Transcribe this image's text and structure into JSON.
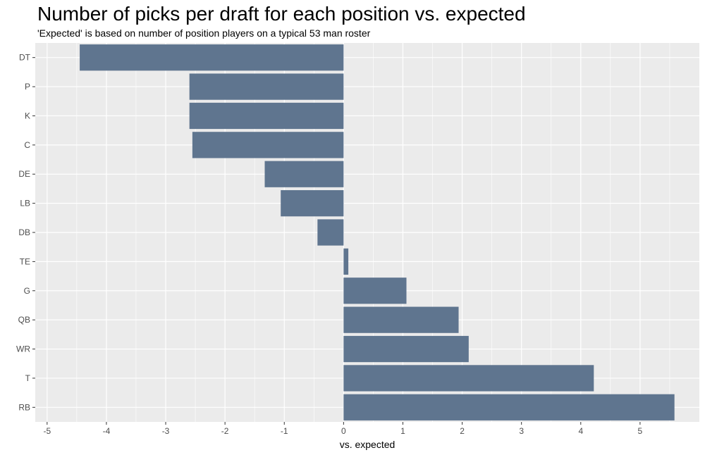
{
  "chart_data": {
    "type": "bar",
    "orientation": "horizontal",
    "title": "Number of picks per draft for each position vs. expected",
    "subtitle": "'Expected' is based on number of position players on a typical 53 man roster",
    "xlabel": "vs. expected",
    "ylabel": "",
    "categories": [
      "DT",
      "P",
      "K",
      "C",
      "DE",
      "LB",
      "DB",
      "TE",
      "G",
      "QB",
      "WR",
      "T",
      "RB"
    ],
    "values": [
      -4.45,
      -2.6,
      -2.6,
      -2.55,
      -1.33,
      -1.06,
      -0.44,
      0.08,
      1.06,
      1.94,
      2.11,
      4.22,
      5.58
    ],
    "xlim": [
      -5,
      6
    ],
    "xticks": [
      -5,
      -4,
      -3,
      -2,
      -1,
      0,
      1,
      2,
      3,
      4,
      5
    ],
    "grid": true,
    "legend": "none",
    "colors": {
      "bar": "#5f758f",
      "panel": "#ebebeb",
      "grid": "#ffffff"
    }
  }
}
